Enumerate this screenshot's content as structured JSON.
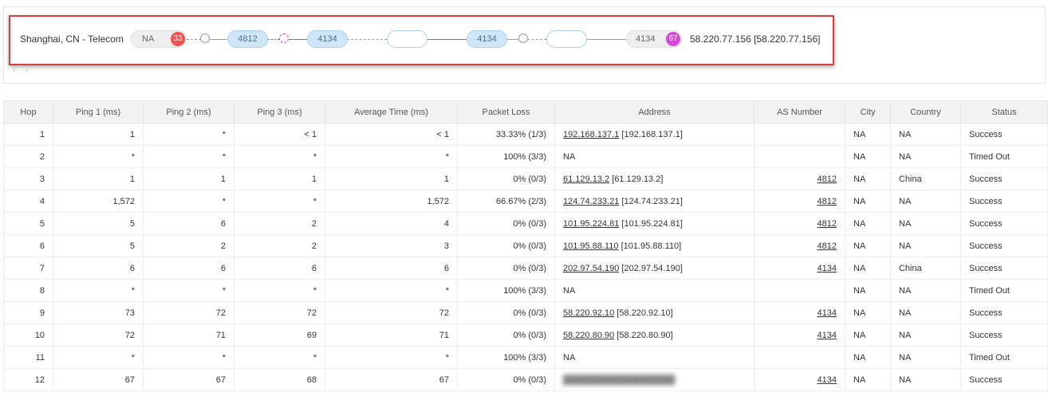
{
  "path": {
    "origin": "Shanghai, CN - Telecom",
    "destination": "58.220.77.156 [58.220.77.156]",
    "nodes": [
      {
        "label": "NA",
        "badge": "33",
        "badge_color": "#ef5350"
      },
      {
        "label": "4812"
      },
      {
        "label": "4134"
      },
      {
        "label": ""
      },
      {
        "label": "4134"
      },
      {
        "label": ""
      },
      {
        "label": "4134",
        "badge": "67",
        "badge_color": "#d946d9"
      }
    ]
  },
  "table": {
    "headers": [
      "Hop",
      "Ping 1 (ms)",
      "Ping 2 (ms)",
      "Ping 3 (ms)",
      "Average Time (ms)",
      "Packet Loss",
      "Address",
      "AS Number",
      "City",
      "Country",
      "Status"
    ],
    "rows": [
      {
        "hop": "1",
        "p1": "1",
        "p2": "*",
        "p3": "< 1",
        "avg": "< 1",
        "loss": "33.33% (1/3)",
        "addr_link": "192.168.137.1",
        "addr_ip": "[192.168.137.1]",
        "asn": "",
        "city": "NA",
        "country": "NA",
        "status": "Success"
      },
      {
        "hop": "2",
        "p1": "*",
        "p2": "*",
        "p3": "*",
        "avg": "*",
        "loss": "100% (3/3)",
        "addr_link": "",
        "addr_ip": "NA",
        "asn": "",
        "city": "NA",
        "country": "NA",
        "status": "Timed Out"
      },
      {
        "hop": "3",
        "p1": "1",
        "p2": "1",
        "p3": "1",
        "avg": "1",
        "loss": "0% (0/3)",
        "addr_link": "61.129.13.2",
        "addr_ip": "[61.129.13.2]",
        "asn": "4812",
        "city": "NA",
        "country": "China",
        "status": "Success"
      },
      {
        "hop": "4",
        "p1": "1,572",
        "p2": "*",
        "p3": "*",
        "avg": "1,572",
        "loss": "66.67% (2/3)",
        "addr_link": "124.74.233.21",
        "addr_ip": "[124.74.233.21]",
        "asn": "4812",
        "city": "NA",
        "country": "NA",
        "status": "Success"
      },
      {
        "hop": "5",
        "p1": "5",
        "p2": "6",
        "p3": "2",
        "avg": "4",
        "loss": "0% (0/3)",
        "addr_link": "101.95.224.81",
        "addr_ip": "[101.95.224.81]",
        "asn": "4812",
        "city": "NA",
        "country": "NA",
        "status": "Success"
      },
      {
        "hop": "6",
        "p1": "5",
        "p2": "2",
        "p3": "2",
        "avg": "3",
        "loss": "0% (0/3)",
        "addr_link": "101.95.88.110",
        "addr_ip": "[101.95.88.110]",
        "asn": "4812",
        "city": "NA",
        "country": "NA",
        "status": "Success"
      },
      {
        "hop": "7",
        "p1": "6",
        "p2": "6",
        "p3": "6",
        "avg": "6",
        "loss": "0% (0/3)",
        "addr_link": "202.97.54.190",
        "addr_ip": "[202.97.54.190]",
        "asn": "4134",
        "city": "NA",
        "country": "China",
        "status": "Success"
      },
      {
        "hop": "8",
        "p1": "*",
        "p2": "*",
        "p3": "*",
        "avg": "*",
        "loss": "100% (3/3)",
        "addr_link": "",
        "addr_ip": "NA",
        "asn": "",
        "city": "NA",
        "country": "NA",
        "status": "Timed Out"
      },
      {
        "hop": "9",
        "p1": "73",
        "p2": "72",
        "p3": "72",
        "avg": "72",
        "loss": "0% (0/3)",
        "addr_link": "58.220.92.10",
        "addr_ip": "[58.220.92.10]",
        "asn": "4134",
        "city": "NA",
        "country": "NA",
        "status": "Success"
      },
      {
        "hop": "10",
        "p1": "72",
        "p2": "71",
        "p3": "69",
        "avg": "71",
        "loss": "0% (0/3)",
        "addr_link": "58.220.80.90",
        "addr_ip": "[58.220.80.90]",
        "asn": "4134",
        "city": "NA",
        "country": "NA",
        "status": "Success"
      },
      {
        "hop": "11",
        "p1": "*",
        "p2": "*",
        "p3": "*",
        "avg": "*",
        "loss": "100% (3/3)",
        "addr_link": "",
        "addr_ip": "NA",
        "asn": "",
        "city": "NA",
        "country": "NA",
        "status": "Timed Out"
      },
      {
        "hop": "12",
        "p1": "67",
        "p2": "67",
        "p3": "68",
        "avg": "67",
        "loss": "0% (0/3)",
        "addr_link": "",
        "addr_ip": "",
        "addr_blurred": true,
        "asn": "4134",
        "city": "NA",
        "country": "NA",
        "status": "Success"
      }
    ]
  }
}
